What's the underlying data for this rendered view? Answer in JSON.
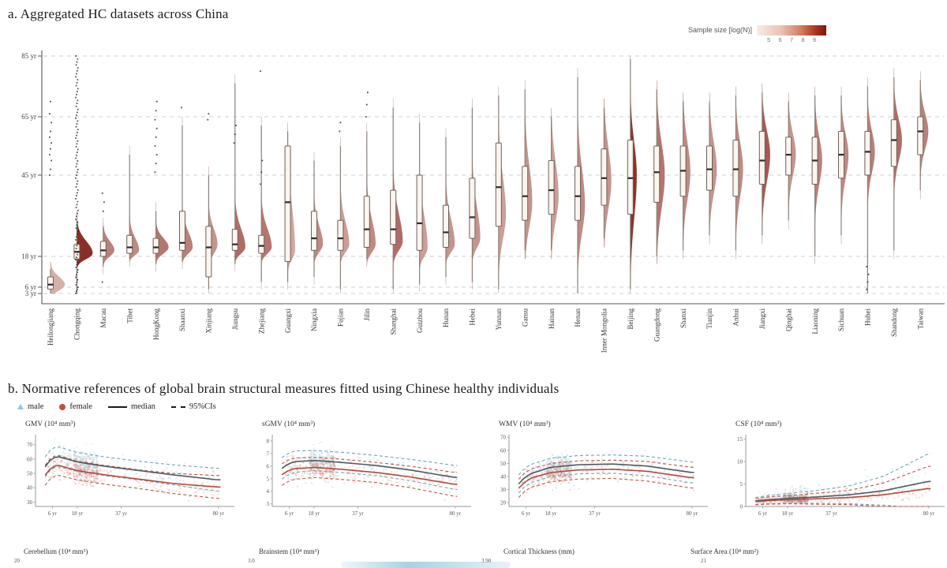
{
  "panel_a": {
    "title": "a. Aggregated HC datasets across China",
    "colorbar": {
      "label": "Sample size [log(N)]",
      "ticks": [
        "5",
        "6",
        "7",
        "8",
        "9"
      ],
      "color_low": "#f8ece6",
      "color_high": "#7f150c"
    },
    "y_ticks": [
      {
        "age": 85,
        "label": "85 yr"
      },
      {
        "age": 65,
        "label": "65 yr"
      },
      {
        "age": 45,
        "label": "45 yr"
      },
      {
        "age": 18,
        "label": "18 yr"
      },
      {
        "age": 6,
        "label": "6 yr"
      },
      {
        "age": 3,
        "label": "3 yr"
      }
    ],
    "chart_data": {
      "type": "violin-box",
      "ylabel": "Age",
      "provinces": [
        {
          "name": "Heilongjiang",
          "lo": 3,
          "q1": 5,
          "med": 7,
          "q3": 10,
          "hi": 13,
          "peak": 7,
          "sd": [
            2.5,
            3
          ],
          "vw": 18,
          "t": 0.3,
          "dots": [
            45,
            47,
            50,
            52,
            54,
            56,
            58,
            60,
            63,
            66,
            70
          ]
        },
        {
          "name": "Chongqing",
          "lo": 3,
          "q1": 17,
          "med": 19.5,
          "q3": 22,
          "hi": 30,
          "peak": 19,
          "sd": [
            2,
            4
          ],
          "vw": 20,
          "t": 0.97,
          "dense": [
            3,
            85,
            85
          ]
        },
        {
          "name": "Macau",
          "lo": 14,
          "q1": 18,
          "med": 20,
          "q3": 23,
          "hi": 28,
          "peak": 20,
          "sd": [
            2,
            3
          ],
          "vw": 14,
          "t": 0.55,
          "dots": [
            8,
            33,
            36,
            39
          ]
        },
        {
          "name": "Tibet",
          "lo": 17,
          "q1": 19,
          "med": 21,
          "q3": 25,
          "hi": 52,
          "peak": 20,
          "sd": [
            1.5,
            4
          ],
          "vw": 12,
          "t": 0.5
        },
        {
          "name": "HongKong",
          "lo": 15,
          "q1": 19,
          "med": 21,
          "q3": 24,
          "hi": 33,
          "peak": 21,
          "sd": [
            2,
            3
          ],
          "vw": 16,
          "t": 0.6,
          "dots": [
            46,
            49,
            52,
            55,
            58,
            61,
            64,
            67,
            70
          ]
        },
        {
          "name": "Shaanxi",
          "lo": 16,
          "q1": 20,
          "med": 22.5,
          "q3": 33,
          "hi": 62,
          "peak": 21,
          "sd": [
            2,
            5
          ],
          "vw": 13,
          "t": 0.55,
          "dots": [
            68
          ]
        },
        {
          "name": "Xinjiang",
          "lo": 5,
          "q1": 10,
          "med": 21,
          "q3": 28,
          "hi": 45,
          "peak": 22,
          "sd": [
            3,
            5
          ],
          "vw": 11,
          "t": 0.45,
          "dots": [
            64,
            66
          ]
        },
        {
          "name": "Jiangsu",
          "lo": 15,
          "q1": 20,
          "med": 22,
          "q3": 27,
          "hi": 76,
          "peak": 21,
          "sd": [
            2,
            6
          ],
          "vw": 13,
          "t": 0.65,
          "dots": [
            56,
            59,
            62
          ]
        },
        {
          "name": "Zhejiang",
          "lo": 8,
          "q1": 19,
          "med": 21.5,
          "q3": 25,
          "hi": 62,
          "peak": 21,
          "sd": [
            2,
            6
          ],
          "vw": 13,
          "t": 0.6,
          "dots": [
            42,
            46,
            50,
            80
          ]
        },
        {
          "name": "Guangxi",
          "lo": 8,
          "q1": 16,
          "med": 36,
          "q3": 55,
          "hi": 60,
          "peak": 20,
          "sd": [
            3,
            14
          ],
          "vw": 9,
          "t": 0.35
        },
        {
          "name": "Ningxia",
          "lo": 10,
          "q1": 20,
          "med": 24,
          "q3": 33,
          "hi": 50,
          "peak": 22,
          "sd": [
            2.5,
            6
          ],
          "vw": 11,
          "t": 0.5
        },
        {
          "name": "Fujian",
          "lo": 5,
          "q1": 20,
          "med": 24,
          "q3": 30,
          "hi": 55,
          "peak": 22,
          "sd": [
            2.5,
            7
          ],
          "vw": 11,
          "t": 0.4,
          "dots": [
            60,
            63
          ]
        },
        {
          "name": "Jilin",
          "lo": 17,
          "q1": 21,
          "med": 27,
          "q3": 38,
          "hi": 60,
          "peak": 22,
          "sd": [
            2.5,
            8
          ],
          "vw": 11,
          "t": 0.5,
          "dots": [
            65,
            69,
            73
          ]
        },
        {
          "name": "Shanghai",
          "lo": 5,
          "q1": 22,
          "med": 27,
          "q3": 40,
          "hi": 68,
          "peak": 23,
          "sd": [
            3,
            9
          ],
          "vw": 12,
          "t": 0.65
        },
        {
          "name": "Guizhou",
          "lo": 7,
          "q1": 20,
          "med": 29,
          "q3": 45,
          "hi": 63,
          "peak": 21,
          "sd": [
            3,
            10
          ],
          "vw": 10,
          "t": 0.4
        },
        {
          "name": "Hunan",
          "lo": 10,
          "q1": 21,
          "med": 26,
          "q3": 35,
          "hi": 58,
          "peak": 22,
          "sd": [
            2.5,
            8
          ],
          "vw": 11,
          "t": 0.45
        },
        {
          "name": "Hebei",
          "lo": 8,
          "q1": 24,
          "med": 31,
          "q3": 44,
          "hi": 68,
          "peak": 24,
          "sd": [
            3,
            10
          ],
          "vw": 10,
          "t": 0.45
        },
        {
          "name": "Yunnan",
          "lo": 5,
          "q1": 28,
          "med": 41,
          "q3": 56,
          "hi": 72,
          "peak": 32,
          "sd": [
            8,
            12
          ],
          "vw": 9,
          "t": 0.4
        },
        {
          "name": "Gansu",
          "lo": 20,
          "q1": 30,
          "med": 38,
          "q3": 48,
          "hi": 74,
          "peak": 36,
          "sd": [
            8,
            12
          ],
          "vw": 9,
          "t": 0.45
        },
        {
          "name": "Hainan",
          "lo": 20,
          "q1": 32,
          "med": 40,
          "q3": 50,
          "hi": 65,
          "peak": 38,
          "sd": [
            8,
            11
          ],
          "vw": 9,
          "t": 0.4
        },
        {
          "name": "Henan",
          "lo": 3,
          "q1": 30,
          "med": 38,
          "q3": 48,
          "hi": 78,
          "peak": 35,
          "sd": [
            9,
            12
          ],
          "vw": 9,
          "t": 0.5
        },
        {
          "name": "Inner Mongolia",
          "lo": 24,
          "q1": 35,
          "med": 44,
          "q3": 54,
          "hi": 68,
          "peak": 43,
          "sd": [
            9,
            11
          ],
          "vw": 9,
          "t": 0.45
        },
        {
          "name": "Beijing",
          "lo": 5,
          "q1": 32,
          "med": 44,
          "q3": 57,
          "hi": 84,
          "peak": 45,
          "sd": [
            14,
            11
          ],
          "vw": 8,
          "t": 0.95
        },
        {
          "name": "Guangdong",
          "lo": 18,
          "q1": 36,
          "med": 46,
          "q3": 55,
          "hi": 74,
          "peak": 45,
          "sd": [
            11,
            11
          ],
          "vw": 10,
          "t": 0.6
        },
        {
          "name": "Shanxi",
          "lo": 20,
          "q1": 38,
          "med": 46.5,
          "q3": 55,
          "hi": 70,
          "peak": 46,
          "sd": [
            9,
            10
          ],
          "vw": 9,
          "t": 0.5
        },
        {
          "name": "Tianjin",
          "lo": 25,
          "q1": 40,
          "med": 47,
          "q3": 55,
          "hi": 70,
          "peak": 47,
          "sd": [
            8,
            9
          ],
          "vw": 9,
          "t": 0.45
        },
        {
          "name": "Anhui",
          "lo": 20,
          "q1": 38,
          "med": 47,
          "q3": 57,
          "hi": 72,
          "peak": 47,
          "sd": [
            9,
            9
          ],
          "vw": 9,
          "t": 0.5
        },
        {
          "name": "Jiangxi",
          "lo": 25,
          "q1": 42,
          "med": 50,
          "q3": 60,
          "hi": 73,
          "peak": 52,
          "sd": [
            9,
            8
          ],
          "vw": 10,
          "t": 0.75
        },
        {
          "name": "Qinghai",
          "lo": 30,
          "q1": 45,
          "med": 52,
          "q3": 58,
          "hi": 70,
          "peak": 52,
          "sd": [
            7,
            7
          ],
          "vw": 9,
          "t": 0.45
        },
        {
          "name": "Liaoning",
          "lo": 18,
          "q1": 42,
          "med": 50,
          "q3": 58,
          "hi": 72,
          "peak": 50,
          "sd": [
            8,
            8
          ],
          "vw": 9,
          "t": 0.55
        },
        {
          "name": "Sichuan",
          "lo": 25,
          "q1": 44,
          "med": 52,
          "q3": 60,
          "hi": 72,
          "peak": 52,
          "sd": [
            8,
            7
          ],
          "vw": 9,
          "t": 0.5
        },
        {
          "name": "Hubei",
          "lo": 3,
          "q1": 45,
          "med": 53,
          "q3": 60,
          "hi": 75,
          "peak": 53,
          "sd": [
            7,
            7
          ],
          "vw": 9,
          "t": 0.55,
          "dots": [
            5,
            8,
            11,
            14
          ]
        },
        {
          "name": "Shandong",
          "lo": 20,
          "q1": 48,
          "med": 57,
          "q3": 64,
          "hi": 78,
          "peak": 57,
          "sd": [
            7,
            7
          ],
          "vw": 10,
          "t": 0.65
        },
        {
          "name": "Taiwan",
          "lo": 40,
          "q1": 52,
          "med": 60,
          "q3": 65,
          "hi": 77,
          "peak": 60,
          "sd": [
            6,
            6
          ],
          "vw": 10,
          "t": 0.55
        }
      ]
    }
  },
  "panel_b": {
    "title": "b. Normative references of global brain structural measures fitted using Chinese healthy individuals",
    "legend": {
      "male": "male",
      "female": "female",
      "median": "median",
      "ci": "95%CIs"
    },
    "colors": {
      "male_point": "#8ec9de",
      "female_point": "#cf6a57",
      "male_line": "#4d5a61",
      "female_line": "#b5493a",
      "male_ci": "#74a3b4",
      "female_ci": "#bf5547",
      "violin_low": "#f8e9e1",
      "violin_high": "#7a1109"
    },
    "chart_data": [
      {
        "id": "gmv",
        "type": "scatter",
        "title": "GMV (10⁴ mm³)",
        "ylim": [
          27,
          77
        ],
        "yticks": [
          70,
          60,
          50,
          40,
          30
        ],
        "ages": [
          0,
          4,
          8,
          18,
          30,
          45,
          60,
          80
        ],
        "male": [
          44,
          58,
          62,
          58,
          55,
          52,
          49,
          45.5
        ],
        "female": [
          39,
          52,
          56,
          52,
          49,
          46,
          43,
          40.5
        ],
        "ci_male": [
          7,
          7,
          7,
          6.5,
          6.5,
          6.5,
          7,
          8
        ],
        "ci_female": [
          7,
          7,
          7,
          6.5,
          6.5,
          6.5,
          7,
          8
        ],
        "sd": 4.2,
        "n": 430,
        "mult": false,
        "xticks": [
          {
            "age": 6,
            "label": "6 yr"
          },
          {
            "age": 18,
            "label": "18 yr"
          },
          {
            "age": 37,
            "label": "37 yr"
          },
          {
            "age": 80,
            "label": "80 yr"
          }
        ]
      },
      {
        "id": "sgmv",
        "type": "scatter",
        "title": "sGMV (10⁴ mm³)",
        "ylim": [
          2.8,
          8.5
        ],
        "yticks": [
          8,
          7,
          6,
          5,
          4,
          3
        ],
        "ages": [
          0,
          4,
          8,
          18,
          30,
          45,
          60,
          80
        ],
        "male": [
          5.3,
          6.0,
          6.35,
          6.45,
          6.3,
          6.05,
          5.7,
          5.1
        ],
        "female": [
          4.8,
          5.5,
          5.8,
          5.9,
          5.75,
          5.5,
          5.15,
          4.55
        ],
        "ci_male": [
          0.85,
          0.85,
          0.85,
          0.8,
          0.8,
          0.8,
          0.85,
          0.95
        ],
        "ci_female": [
          0.85,
          0.85,
          0.85,
          0.8,
          0.8,
          0.8,
          0.85,
          0.95
        ],
        "sd": 0.48,
        "n": 430,
        "mult": false,
        "xticks": [
          {
            "age": 6,
            "label": "6 yr"
          },
          {
            "age": 18,
            "label": "18 yr"
          },
          {
            "age": 37,
            "label": "37 yr"
          },
          {
            "age": 80,
            "label": "80 yr"
          }
        ]
      },
      {
        "id": "wmv",
        "type": "scatter",
        "title": "WMV (10⁴ mm³)",
        "ylim": [
          17,
          72
        ],
        "yticks": [
          70,
          60,
          50,
          40,
          30,
          20
        ],
        "ages": [
          0,
          4,
          8,
          18,
          30,
          45,
          60,
          80
        ],
        "male": [
          26,
          37,
          42,
          47,
          49,
          49.5,
          48,
          43
        ],
        "female": [
          23,
          33.5,
          38.5,
          43,
          45,
          45.5,
          44,
          39
        ],
        "ci_male": [
          7,
          7,
          7,
          7,
          7,
          7,
          7.5,
          8
        ],
        "ci_female": [
          7,
          7,
          7,
          7,
          7,
          7,
          7.5,
          8
        ],
        "sd": 4.4,
        "n": 430,
        "mult": false,
        "xticks": [
          {
            "age": 6,
            "label": "6 yr"
          },
          {
            "age": 18,
            "label": "18 yr"
          },
          {
            "age": 37,
            "label": "37 yr"
          },
          {
            "age": 80,
            "label": "80 yr"
          }
        ]
      },
      {
        "id": "csf",
        "type": "scatter",
        "title": "CSF (10⁴ mm³)",
        "ylim": [
          0,
          16
        ],
        "yticks": [
          15,
          10,
          5,
          0
        ],
        "ages": [
          0,
          4,
          8,
          18,
          30,
          45,
          60,
          80
        ],
        "male": [
          1.1,
          1.3,
          1.5,
          1.8,
          2.1,
          2.6,
          3.5,
          5.6
        ],
        "female": [
          0.9,
          1.1,
          1.3,
          1.5,
          1.7,
          2.0,
          2.6,
          4.0
        ],
        "ci_male": [
          0.7,
          0.8,
          0.9,
          1.1,
          1.4,
          2.0,
          3.2,
          6.2
        ],
        "ci_female": [
          0.6,
          0.7,
          0.8,
          0.9,
          1.2,
          1.6,
          2.6,
          5.0
        ],
        "sd": 0.38,
        "n": 430,
        "mult": true,
        "xticks": [
          {
            "age": 6,
            "label": "6 yr"
          },
          {
            "age": 18,
            "label": "18 yr"
          },
          {
            "age": 37,
            "label": "37 yr"
          },
          {
            "age": 80,
            "label": "80 yr"
          }
        ]
      }
    ],
    "row2": [
      {
        "title": "Cerebellum (10⁴ mm³)",
        "tick": "20"
      },
      {
        "title": "Brainstem (10⁴ mm³)",
        "tick": "3.0"
      },
      {
        "title": "Cortical Thickness (mm)",
        "tick": "3.90"
      },
      {
        "title": "Surface Area (10⁴ mm²)",
        "tick": "21"
      }
    ]
  }
}
